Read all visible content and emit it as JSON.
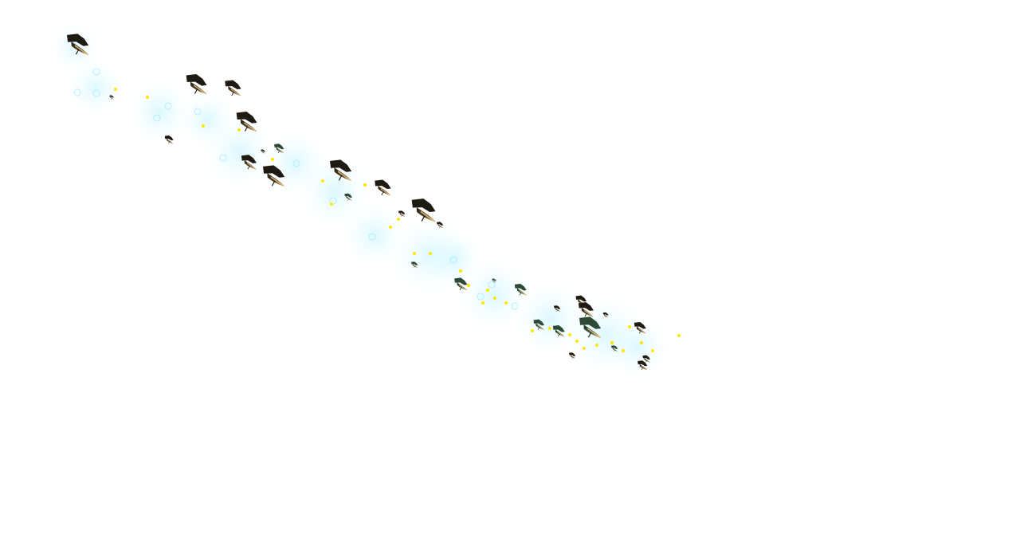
{
  "scene": {
    "background_color": "#ffffff",
    "description_tag": "swarm-of-flying-creatures",
    "creature_count": 32
  },
  "palette": {
    "creature_dark": "#1f1a12",
    "creature_mid": "#3b3222",
    "creature_green": "#2d4a34",
    "wing_highlight": "#d8b57a",
    "glow_cyan": "#c9f6ff",
    "glow_ring": "#8fe6ff",
    "spark_yellow": "#ffe600"
  }
}
